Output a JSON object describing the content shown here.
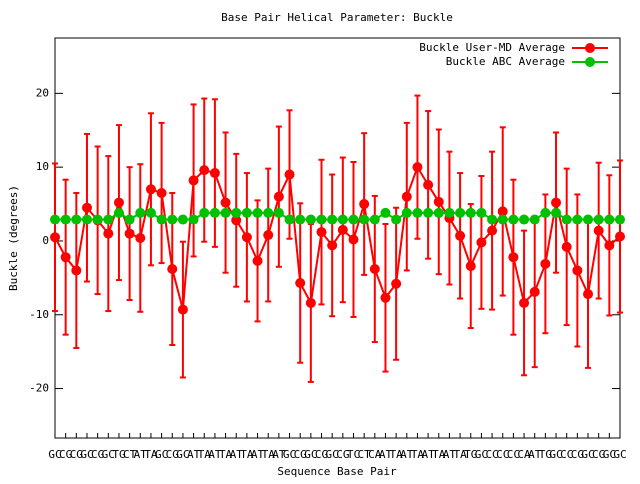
{
  "chart_data": {
    "type": "line",
    "title": "Base Pair Helical Parameter: Buckle",
    "x_label": "Sequence Base Pair",
    "y_label": "Buckle (degrees)",
    "categories": [
      "GC",
      "CG",
      "CG",
      "GC",
      "CG",
      "GC",
      "TG",
      "CT",
      "AT",
      "TA",
      "GC",
      "CG",
      "GC",
      "AT",
      "TA",
      "AT",
      "TA",
      "AT",
      "TA",
      "AT",
      "TA",
      "AT",
      "GC",
      "CG",
      "GC",
      "CG",
      "GC",
      "CG",
      "TC",
      "CT",
      "CA",
      "AT",
      "TA",
      "AT",
      "TA",
      "AT",
      "TA",
      "AT",
      "TA",
      "TG",
      "GC",
      "CC",
      "CC",
      "CC",
      "CA",
      "AT",
      "TG",
      "GC",
      "CC",
      "CG",
      "GC",
      "CG",
      "GC",
      "GC"
    ],
    "ylim": [
      -26.7,
      27.5
    ],
    "yticks": [
      -20,
      -10,
      0,
      10,
      20
    ],
    "legend": "top-right",
    "series": [
      {
        "name": "Buckle User-MD Average",
        "color": "#ff0000",
        "values": [
          0.5,
          -2.2,
          -4,
          4.5,
          2.8,
          1,
          5.2,
          1,
          0.4,
          7,
          6.5,
          -3.8,
          -9.3,
          8.2,
          9.6,
          9.2,
          5.2,
          2.8,
          0.5,
          -2.7,
          0.8,
          6,
          9,
          -5.7,
          -8.4,
          1.2,
          -0.6,
          1.5,
          0.2,
          5,
          -3.8,
          -7.7,
          -5.8,
          6,
          10,
          7.6,
          5.3,
          3.1,
          0.7,
          -3.4,
          -0.2,
          1.4,
          4,
          -2.2,
          -8.4,
          -6.9,
          -3.1,
          5.2,
          -0.8,
          -4,
          -7.2,
          1.4,
          -0.6,
          0.6
        ],
        "errors": [
          10,
          10.5,
          10.5,
          10,
          10,
          10.5,
          10.5,
          9,
          10,
          10.3,
          9.5,
          10.3,
          9.2,
          10.3,
          9.7,
          10,
          9.5,
          9,
          8.7,
          8.2,
          9,
          9.5,
          8.7,
          10.8,
          10.7,
          9.8,
          9.6,
          9.8,
          10.5,
          9.6,
          9.9,
          10,
          10.3,
          10,
          9.7,
          10,
          9.8,
          9,
          8.5,
          8.4,
          9,
          10.7,
          11.4,
          10.5,
          9.8,
          10.2,
          9.4,
          9.5,
          10.6,
          10.3,
          10,
          9.2,
          9.5,
          10.3
        ]
      },
      {
        "name": "Buckle ABC Average",
        "color": "#00c000",
        "values": [
          2.9,
          2.9,
          2.9,
          2.9,
          2.9,
          2.9,
          3.8,
          2.9,
          3.8,
          3.8,
          2.9,
          2.9,
          2.9,
          2.9,
          3.8,
          3.8,
          3.8,
          3.8,
          3.8,
          3.8,
          3.8,
          3.8,
          2.9,
          2.9,
          2.9,
          2.9,
          2.9,
          2.9,
          2.9,
          2.9,
          2.9,
          3.8,
          2.9,
          3.8,
          3.8,
          3.8,
          3.8,
          3.8,
          3.8,
          3.8,
          3.8,
          2.9,
          2.9,
          2.9,
          2.9,
          2.9,
          3.8,
          3.8,
          2.9,
          2.9,
          2.9,
          2.9,
          2.9,
          2.9
        ]
      }
    ]
  }
}
